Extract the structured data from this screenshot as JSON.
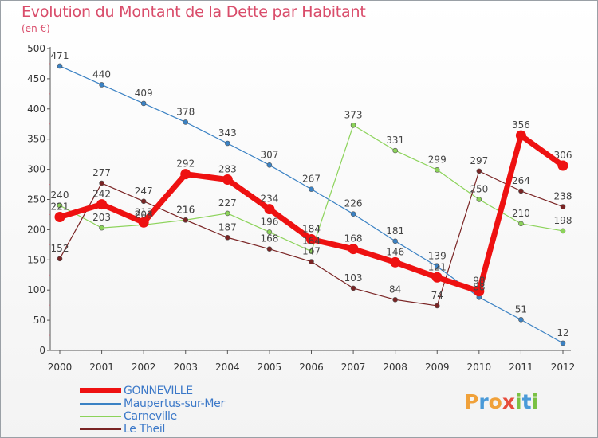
{
  "title": "Evolution du Montant de la Dette par Habitant",
  "subtitle": "(en €)",
  "brand": {
    "letters": [
      "P",
      "r",
      "o",
      "x",
      "i",
      "t",
      "i"
    ],
    "colors": [
      "#f0a13a",
      "#4a9ad8",
      "#f0a13a",
      "#e64c3c",
      "#7ac143",
      "#4a9ad8",
      "#7ac143"
    ]
  },
  "chart_data": {
    "type": "line",
    "title": "Evolution du Montant de la Dette par Habitant",
    "subtitle": "(en €)",
    "xlabel": "",
    "ylabel": "",
    "ylim": [
      0,
      500
    ],
    "yticks": [
      0,
      50,
      100,
      150,
      200,
      250,
      300,
      350,
      400,
      450,
      500
    ],
    "grid": false,
    "legend_position": "bottom-left",
    "categories": [
      "2000",
      "2001",
      "2002",
      "2003",
      "2004",
      "2005",
      "2006",
      "2007",
      "2008",
      "2009",
      "2010",
      "2011",
      "2012"
    ],
    "series": [
      {
        "name": "Maupertus-sur-Mer",
        "color": "#3b82c4",
        "emphasis": false,
        "values": [
          471,
          440,
          409,
          378,
          343,
          307,
          267,
          226,
          181,
          139,
          88,
          51,
          12
        ],
        "labels": [
          "471",
          "440",
          "409",
          "378",
          "343",
          "307",
          "267",
          "226",
          "181",
          "139",
          "88",
          "51",
          "12"
        ]
      },
      {
        "name": "Carneville",
        "color": "#8cd35a",
        "emphasis": false,
        "values": [
          240,
          203,
          208,
          216,
          227,
          196,
          164,
          373,
          331,
          299,
          250,
          210,
          198
        ],
        "labels": [
          "240",
          "203",
          "208",
          "216",
          "227",
          "196",
          "164",
          "373",
          "331",
          "299",
          "250",
          "210",
          "198"
        ]
      },
      {
        "name": "Le Theil",
        "color": "#7a2424",
        "emphasis": false,
        "values": [
          152,
          277,
          247,
          216,
          187,
          168,
          147,
          103,
          84,
          74,
          297,
          264,
          238
        ],
        "labels": [
          "152",
          "277",
          "247",
          "216",
          "187",
          "168",
          "147",
          "103",
          "84",
          "74",
          "297",
          "264",
          "238"
        ]
      },
      {
        "name": "GONNEVILLE",
        "color": "#ee1111",
        "emphasis": true,
        "values": [
          221,
          242,
          212,
          292,
          283,
          234,
          184,
          168,
          146,
          121,
          98,
          356,
          306
        ],
        "labels": [
          "221",
          "242",
          "212",
          "292",
          "283",
          "234",
          "184",
          "168",
          "146",
          "121",
          "98",
          "356",
          "306"
        ]
      }
    ],
    "legend_order": [
      "GONNEVILLE",
      "Maupertus-sur-Mer",
      "Carneville",
      "Le Theil"
    ]
  }
}
